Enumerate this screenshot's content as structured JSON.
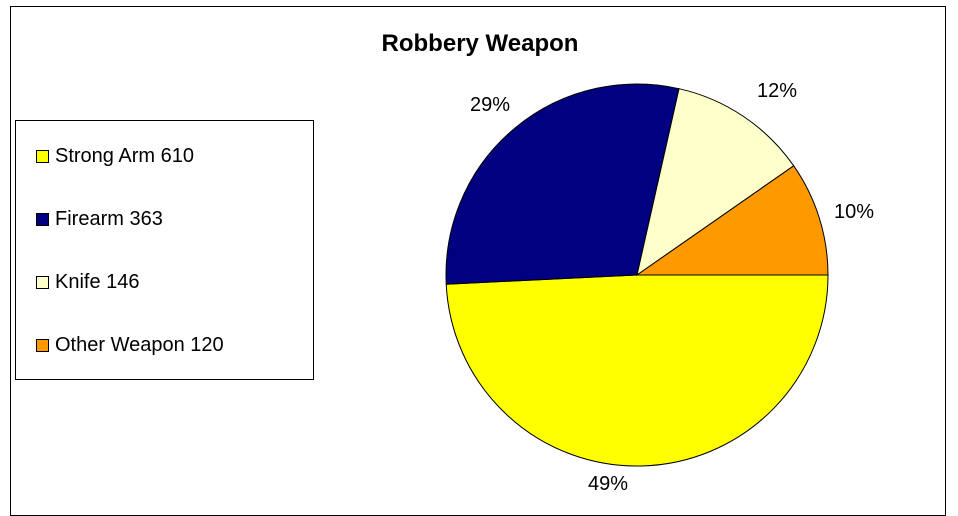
{
  "chart_data": {
    "type": "pie",
    "title": "Robbery Weapon",
    "slices": [
      {
        "name": "Strong Arm",
        "value": 610,
        "label": "49%",
        "color": "#FFFF00",
        "legend": "Strong Arm 610"
      },
      {
        "name": "Firearm",
        "value": 363,
        "label": "29%",
        "color": "#000080",
        "legend": "Firearm 363"
      },
      {
        "name": "Knife",
        "value": 146,
        "label": "12%",
        "color": "#FFFFCC",
        "legend": "Knife 146"
      },
      {
        "name": "Other Weapon",
        "value": 120,
        "label": "10%",
        "color": "#FF9900",
        "legend": "Other Weapon 120"
      }
    ],
    "legend_position": "left"
  }
}
